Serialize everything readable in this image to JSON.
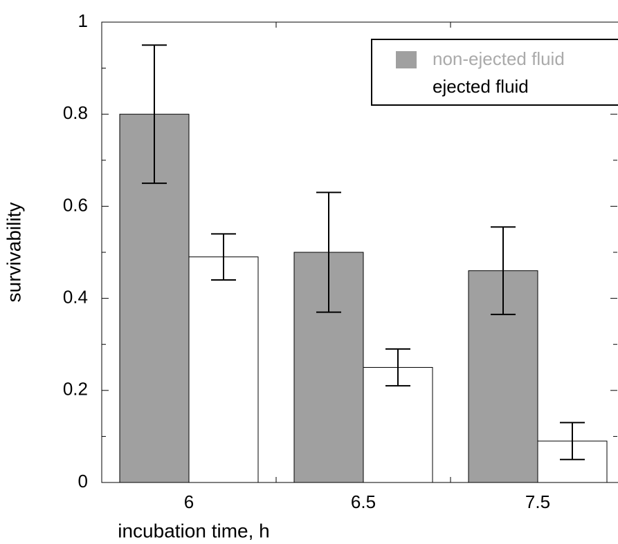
{
  "chart_data": {
    "type": "bar",
    "x_label": "incubation time, h",
    "y_label": "survivability",
    "categories": [
      "6",
      "6.5",
      "7.5"
    ],
    "series": [
      {
        "name": "non-ejected fluid",
        "color": "#a0a0a0",
        "values": [
          0.8,
          0.5,
          0.46
        ],
        "errors": [
          0.15,
          0.13,
          0.095
        ]
      },
      {
        "name": "ejected fluid",
        "color": "#ffffff",
        "values": [
          0.49,
          0.25,
          0.09
        ],
        "errors": [
          0.05,
          0.04,
          0.04
        ]
      }
    ],
    "ylim": [
      0,
      1
    ],
    "yticks": [
      0,
      0.2,
      0.4,
      0.6,
      0.8,
      1
    ],
    "yminorticks": [
      0.1,
      0.3,
      0.5,
      0.7,
      0.9
    ],
    "legend": "upper right"
  }
}
